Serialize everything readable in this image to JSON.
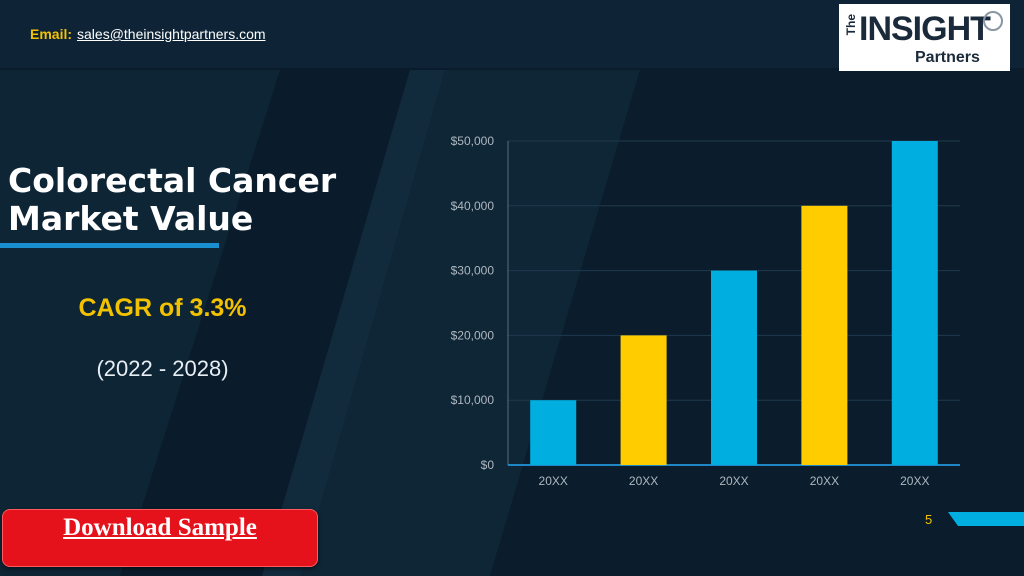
{
  "header": {
    "email_label": "Email:",
    "email": "sales@theinsightpartners.com"
  },
  "logo": {
    "the": "The",
    "insight": "INSIGHT",
    "partners": "Partners"
  },
  "title": "Colorectal Cancer Market Value",
  "cagr": "CAGR of  3.3%",
  "period": "(2022 - 2028)",
  "download_label": "Download Sample",
  "page_number": "5",
  "colors": {
    "background": "#0a1c2b",
    "accent_blue": "#00aee0",
    "accent_yellow": "#ffcc00",
    "download_red": "#e5111b",
    "cagr_yellow": "#f2c200"
  },
  "chart_data": {
    "type": "bar",
    "categories": [
      "20XX",
      "20XX",
      "20XX",
      "20XX",
      "20XX"
    ],
    "values": [
      10000,
      20000,
      30000,
      40000,
      50000
    ],
    "bar_colors": [
      "#00aee0",
      "#ffcc00",
      "#00aee0",
      "#ffcc00",
      "#00aee0"
    ],
    "yticks": [
      0,
      10000,
      20000,
      30000,
      40000,
      50000
    ],
    "ytick_labels": [
      "$0",
      "$10,000",
      "$20,000",
      "$30,000",
      "$40,000",
      "$50,000"
    ],
    "ylim": [
      0,
      50000
    ],
    "grid": true,
    "title": "",
    "xlabel": "",
    "ylabel": ""
  }
}
